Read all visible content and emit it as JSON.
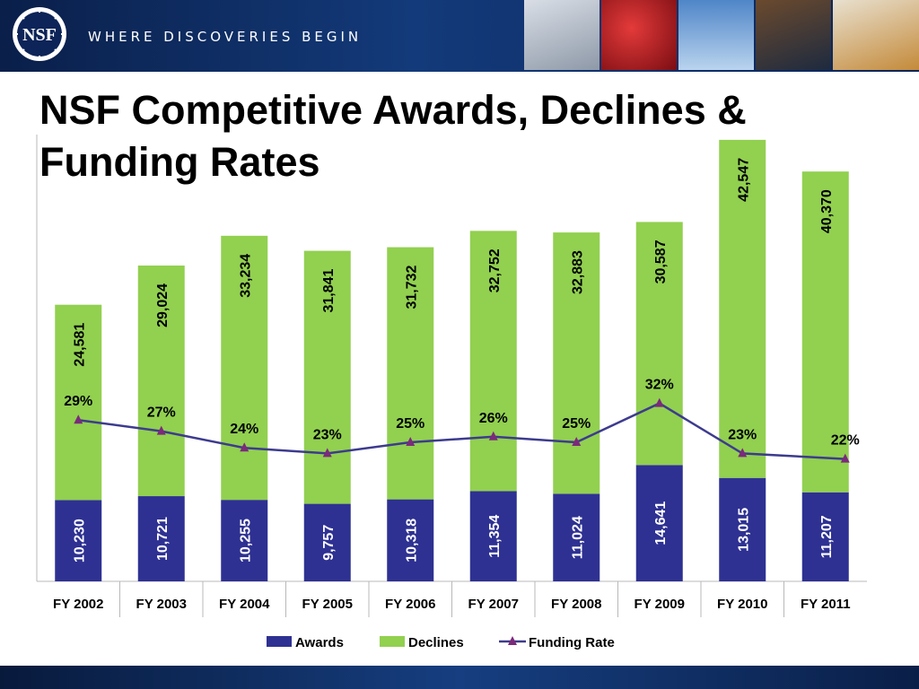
{
  "header": {
    "logo_text": "NSF",
    "tagline": "WHERE DISCOVERIES BEGIN",
    "photos": [
      "lab-equipment-photo",
      "blood-cells-photo",
      "wind-turbines-photo",
      "students-lab-photo",
      "scientist-photo"
    ]
  },
  "title": "NSF Competitive Awards, Declines & Funding Rates",
  "colors": {
    "awards": "#2e3192",
    "declines": "#92d050",
    "funding_rate_line": "#3d3b8e",
    "funding_rate_marker": "#7b2a7a",
    "banner": "#0c2458"
  },
  "chart_data": {
    "type": "bar",
    "stacked": true,
    "categories": [
      "FY 2002",
      "FY 2003",
      "FY 2004",
      "FY 2005",
      "FY 2006",
      "FY 2007",
      "FY 2008",
      "FY 2009",
      "FY 2010",
      "FY 2011"
    ],
    "series": [
      {
        "name": "Awards",
        "values": [
          10230,
          10721,
          10255,
          9757,
          10318,
          11354,
          11024,
          14641,
          13015,
          11207
        ]
      },
      {
        "name": "Declines",
        "values": [
          24581,
          29024,
          33234,
          31841,
          31732,
          32752,
          32883,
          30587,
          42547,
          40370
        ]
      }
    ],
    "line_series": {
      "name": "Funding Rate",
      "values": [
        29,
        27,
        24,
        23,
        25,
        26,
        25,
        32,
        23,
        22
      ],
      "labels": [
        "29%",
        "27%",
        "24%",
        "23%",
        "25%",
        "26%",
        "25%",
        "32%",
        "23%",
        "22%"
      ]
    },
    "bar_labels": {
      "awards": [
        "10,230",
        "10,721",
        "10,255",
        "9,757",
        "10,318",
        "11,354",
        "11,024",
        "14,641",
        "13,015",
        "11,207"
      ],
      "declines": [
        "24,581",
        "29,024",
        "33,234",
        "31,841",
        "31,732",
        "32,752",
        "32,883",
        "30,587",
        "42,547",
        "40,370"
      ]
    },
    "legend": {
      "position": "bottom",
      "entries": [
        "Awards",
        "Declines",
        "Funding Rate"
      ]
    },
    "ylim": [
      0,
      56000
    ],
    "funding_rate_axis": [
      0,
      80
    ],
    "grid": false
  }
}
